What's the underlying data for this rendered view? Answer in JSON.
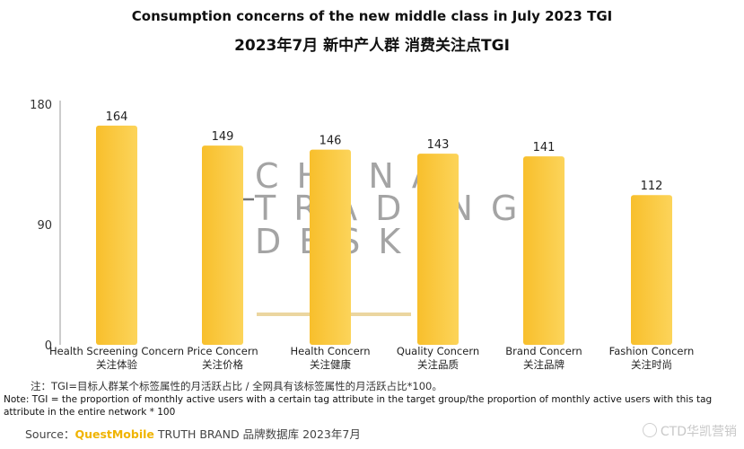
{
  "title_en": "Consumption concerns of the new middle class in July 2023 TGI",
  "title_cn": "2023年7月 新中产人群 消费关注点TGI",
  "chart_data": {
    "type": "bar",
    "categories": [
      {
        "en": "Health Screening Concern",
        "cn": "关注体验"
      },
      {
        "en": "Price Concern",
        "cn": "关注价格"
      },
      {
        "en": "Health Concern",
        "cn": "关注健康"
      },
      {
        "en": "Quality Concern",
        "cn": "关注品质"
      },
      {
        "en": "Brand Concern",
        "cn": "关注品牌"
      },
      {
        "en": "Fashion Concern",
        "cn": "关注时尚"
      }
    ],
    "values": [
      164,
      149,
      146,
      143,
      141,
      112
    ],
    "yticks": [
      0,
      90,
      180
    ],
    "ylim": [
      0,
      180
    ],
    "grid": false,
    "bar_color": "#f8bf2c",
    "bar_color_light": "#fcd45a"
  },
  "watermark": [
    "CHINA",
    "TRADING",
    "DESK"
  ],
  "note_cn": "注：TGI=目标人群某个标签属性的月活跃占比 / 全网具有该标签属性的月活跃占比*100。",
  "note_en": "Note: TGI = the proportion of monthly active users with a certain tag attribute in the target group/the proportion of monthly active users with this tag attribute in the entire network * 100",
  "source_label": "Source：",
  "source_brand": "QuestMobile",
  "source_rest": " TRUTH BRAND 品牌数据库 2023年7月",
  "weibo_mark": "CTD华凯营销"
}
